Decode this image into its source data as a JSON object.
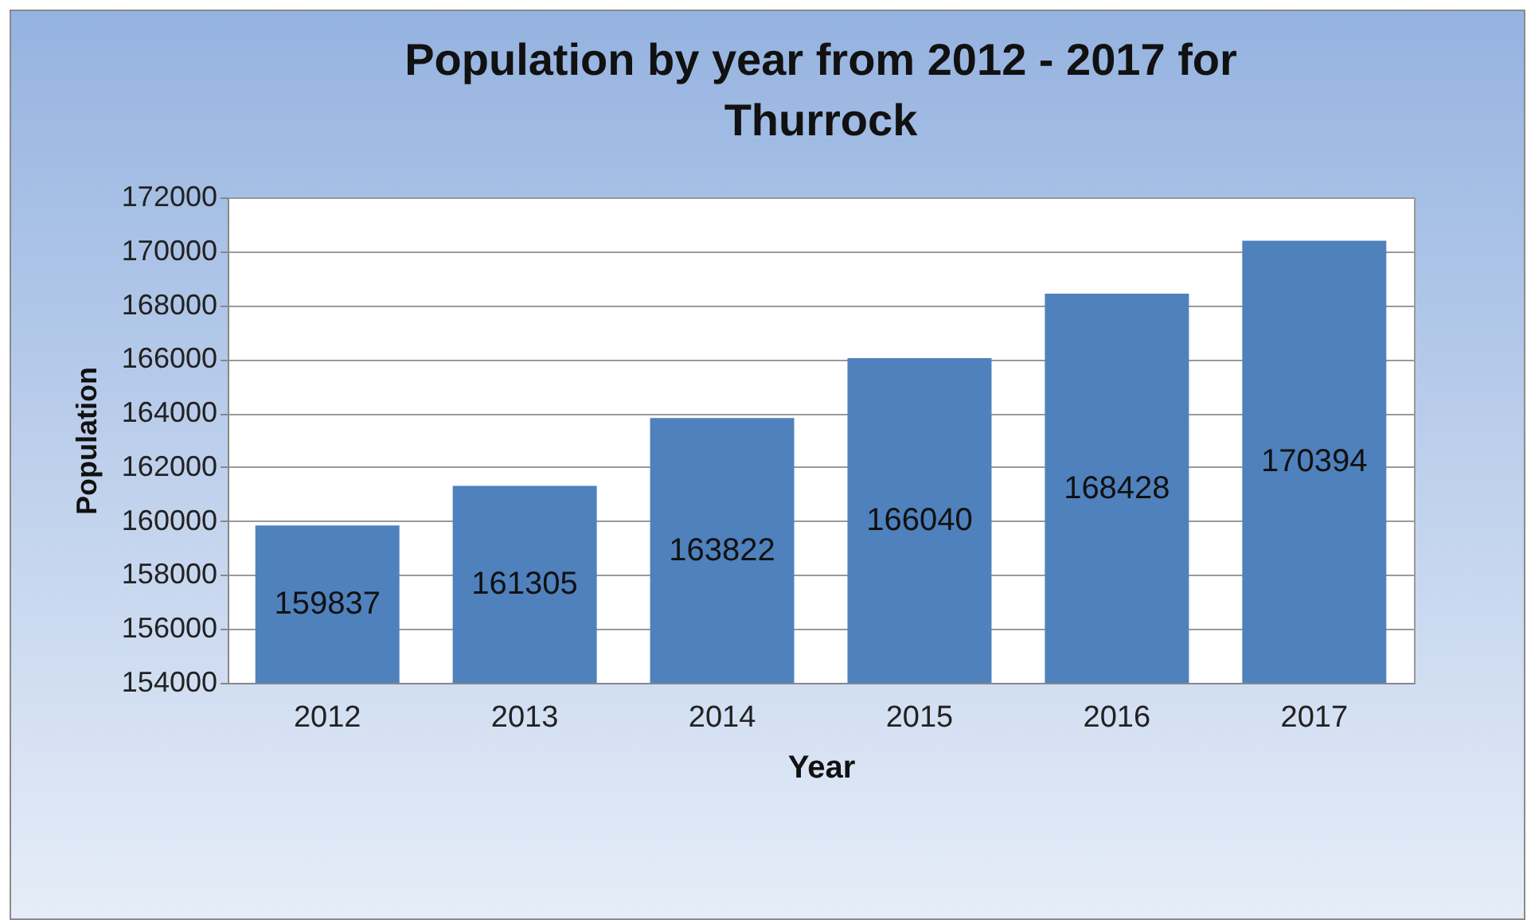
{
  "chart_data": {
    "type": "bar",
    "title": "Population by year from 2012 - 2017 for Thurrock",
    "xlabel": "Year",
    "ylabel": "Population",
    "categories": [
      "2012",
      "2013",
      "2014",
      "2015",
      "2016",
      "2017"
    ],
    "values": [
      159837,
      161305,
      163822,
      166040,
      168428,
      170394
    ],
    "color": "#4f81bd",
    "ylim": [
      154000,
      172000
    ],
    "yticks": [
      154000,
      156000,
      158000,
      160000,
      162000,
      164000,
      166000,
      168000,
      170000,
      172000
    ],
    "grid": "y",
    "data_labels": true,
    "legend": false
  }
}
